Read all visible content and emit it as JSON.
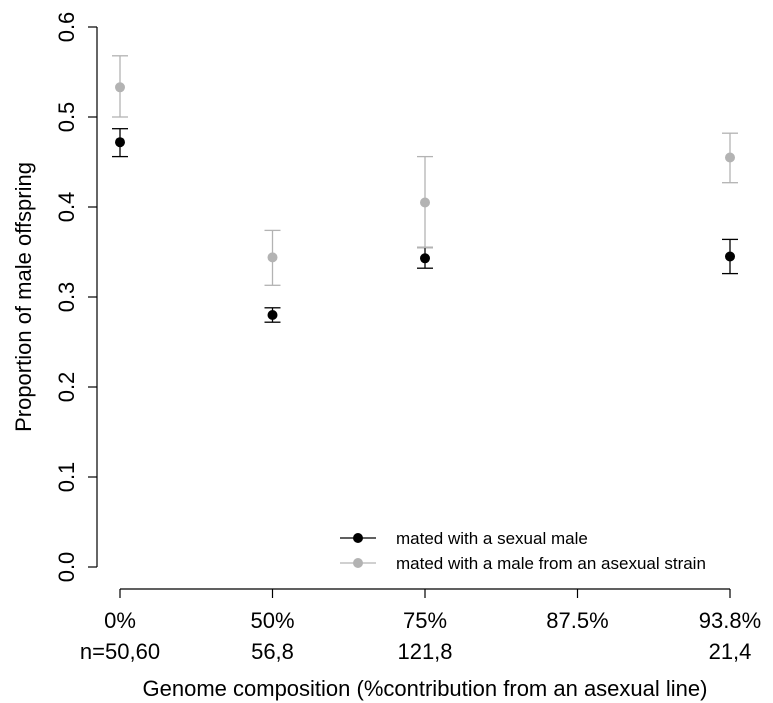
{
  "chart_data": {
    "type": "scatter",
    "xlabel": "Genome composition (%contribution from an asexual line)",
    "ylabel": "Proportion of male offspring",
    "ylim": [
      0,
      0.6
    ],
    "yticks": [
      "0.0",
      "0.1",
      "0.2",
      "0.3",
      "0.4",
      "0.5",
      "0.6"
    ],
    "categories": [
      "0%",
      "50%",
      "75%",
      "87.5%",
      "93.8%"
    ],
    "sample_sizes": [
      "n=50,60",
      "56,8",
      "121,8",
      "",
      "21,4"
    ],
    "grid": false,
    "legend_position": "bottom-right",
    "series": [
      {
        "name": "mated with a sexual male",
        "color": "#000000",
        "points": [
          {
            "category": "0%",
            "y": 0.472,
            "lower": 0.456,
            "upper": 0.487
          },
          {
            "category": "50%",
            "y": 0.28,
            "lower": 0.272,
            "upper": 0.288
          },
          {
            "category": "75%",
            "y": 0.343,
            "lower": 0.332,
            "upper": 0.355
          },
          {
            "category": "93.8%",
            "y": 0.345,
            "lower": 0.326,
            "upper": 0.364
          }
        ]
      },
      {
        "name": "mated with a male from an asexual strain",
        "color": "#b3b3b3",
        "points": [
          {
            "category": "0%",
            "y": 0.533,
            "lower": 0.5,
            "upper": 0.568
          },
          {
            "category": "50%",
            "y": 0.344,
            "lower": 0.313,
            "upper": 0.374
          },
          {
            "category": "75%",
            "y": 0.405,
            "lower": 0.355,
            "upper": 0.456
          },
          {
            "category": "93.8%",
            "y": 0.455,
            "lower": 0.427,
            "upper": 0.482
          }
        ]
      }
    ]
  }
}
